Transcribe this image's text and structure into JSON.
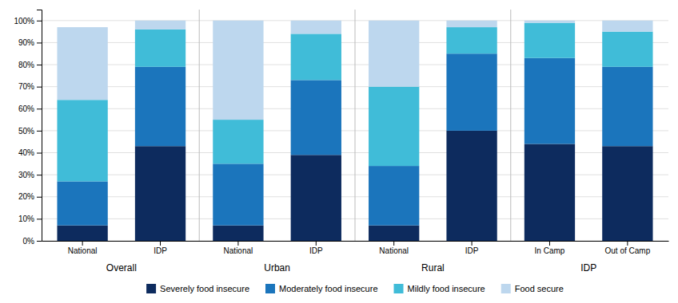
{
  "chart_data": {
    "type": "bar",
    "stacked": true,
    "categories": [
      "National",
      "IDP",
      "National",
      "IDP",
      "National",
      "IDP",
      "In Camp",
      "Out of Camp"
    ],
    "group_labels": [
      "Overall",
      "Urban",
      "Rural",
      "IDP"
    ],
    "series": [
      {
        "name": "Severely food insecure",
        "color": "#0d2b5e",
        "values": [
          7,
          43,
          7,
          39,
          7,
          50,
          44,
          43
        ]
      },
      {
        "name": "Moderately food insecure",
        "color": "#1b75bc",
        "values": [
          20,
          36,
          28,
          34,
          27,
          35,
          39,
          36
        ]
      },
      {
        "name": "Mildly food insecure",
        "color": "#40bcd8",
        "values": [
          37,
          17,
          20,
          21,
          36,
          12,
          16,
          16
        ]
      },
      {
        "name": "Food secure",
        "color": "#bdd7ee",
        "values": [
          33,
          4,
          45,
          6,
          30,
          3,
          1,
          5
        ]
      }
    ],
    "ylim": [
      0,
      105
    ],
    "yticks": [
      {
        "value": 0,
        "label": "0%"
      },
      {
        "value": 10,
        "label": "10%"
      },
      {
        "value": 20,
        "label": "20%"
      },
      {
        "value": 30,
        "label": "30%"
      },
      {
        "value": 40,
        "label": "40%"
      },
      {
        "value": 50,
        "label": "50%"
      },
      {
        "value": 60,
        "label": "60%"
      },
      {
        "value": 70,
        "label": "70%"
      },
      {
        "value": 80,
        "label": "80%"
      },
      {
        "value": 90,
        "label": "90%"
      },
      {
        "value": 100,
        "label": "100%"
      }
    ],
    "grid": true,
    "legend": "bottom"
  }
}
